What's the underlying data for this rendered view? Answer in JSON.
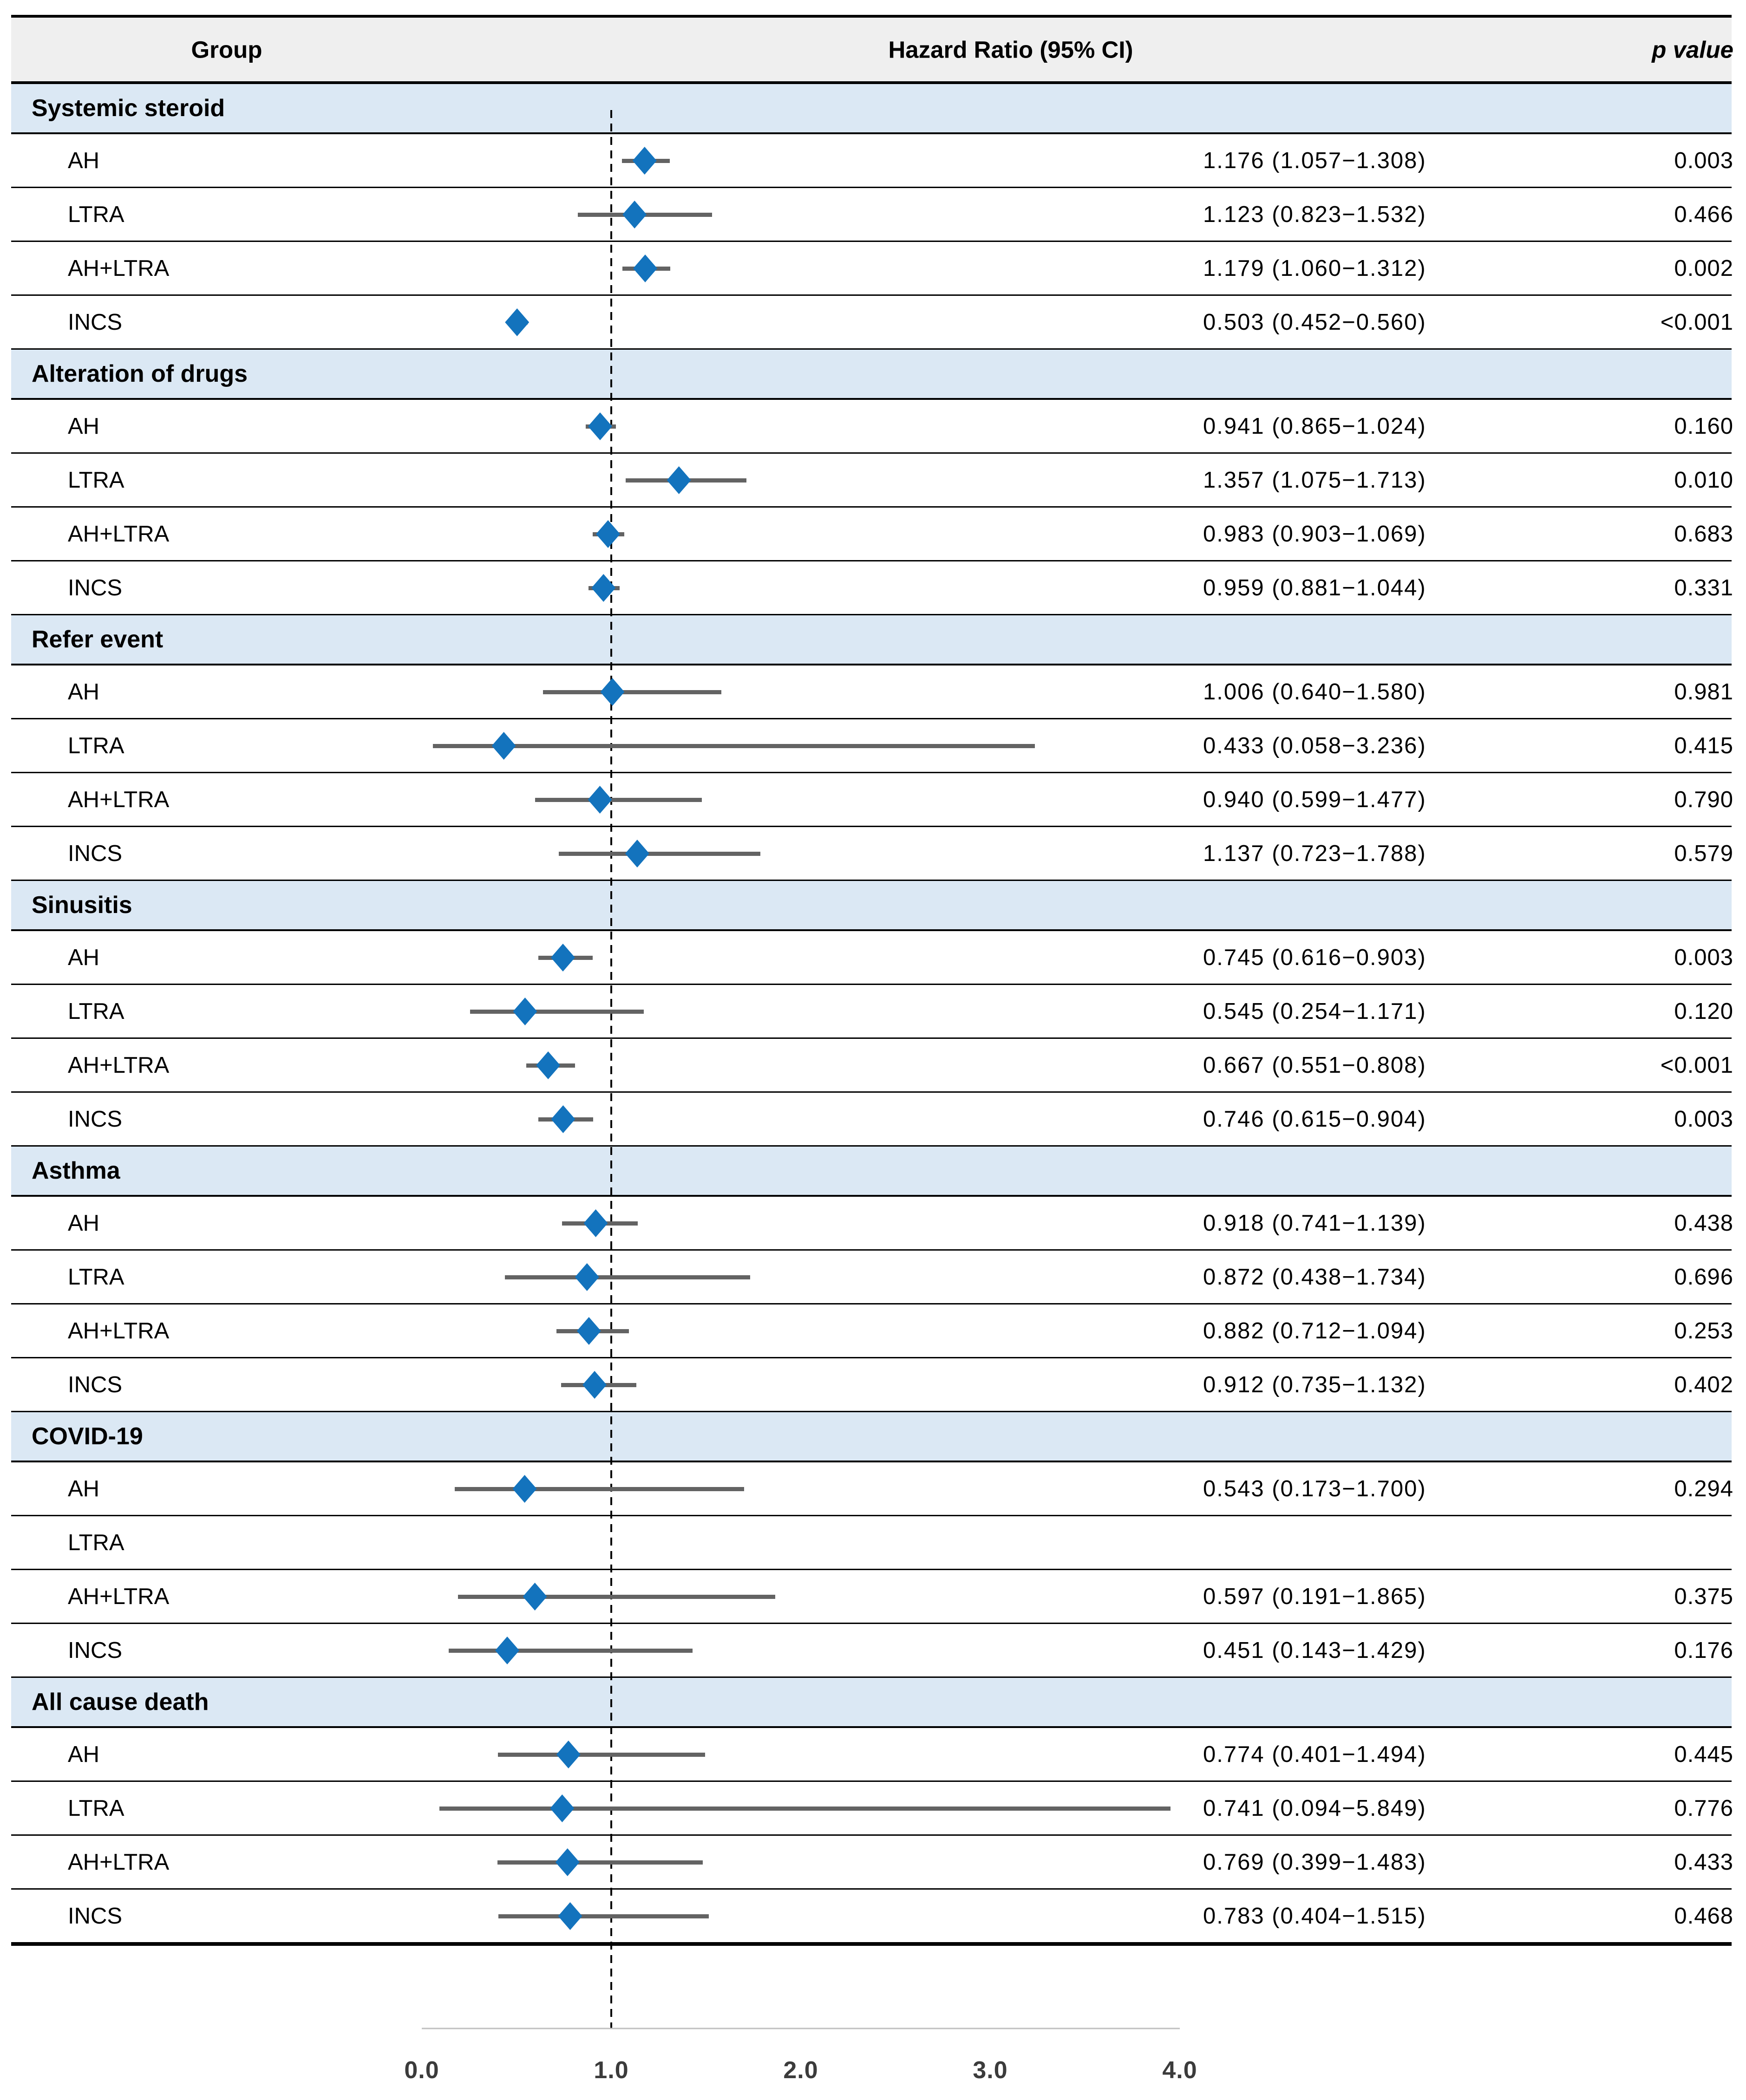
{
  "header": {
    "group": "Group",
    "hazard": "Hazard Ratio (95% CI)",
    "p": "p value"
  },
  "colors": {
    "diamond": "#1373bd",
    "ci_line": "#636363",
    "band_bg": "#dbe8f4",
    "header_bg": "#efefef",
    "border": "#000000",
    "axis_line": "#bfbfbf",
    "tick_text": "#3b3b3b",
    "reference_line": "#000000"
  },
  "chart_data": {
    "type": "scatter",
    "variant": "forest-plot",
    "title": "",
    "xlabel": "Hazard Ratio (95% CI)",
    "xlim": [
      0,
      4.05
    ],
    "x_ticks": [
      "0.0",
      "1.0",
      "2.0",
      "3.0",
      "4.0"
    ],
    "x_tick_values": [
      0,
      1,
      2,
      3,
      4
    ],
    "reference_line_x": 1.0,
    "grid": false,
    "legend_position": "none",
    "marker": "diamond",
    "sections": [
      {
        "label": "Systemic steroid",
        "rows": [
          {
            "label": "AH",
            "hr": 1.176,
            "lo": 1.057,
            "hi": 1.308,
            "hr_text": "1.176 (1.057−1.308)",
            "p": "0.003"
          },
          {
            "label": "LTRA",
            "hr": 1.123,
            "lo": 0.823,
            "hi": 1.532,
            "hr_text": "1.123 (0.823−1.532)",
            "p": "0.466"
          },
          {
            "label": "AH+LTRA",
            "hr": 1.179,
            "lo": 1.06,
            "hi": 1.312,
            "hr_text": "1.179 (1.060−1.312)",
            "p": "0.002"
          },
          {
            "label": "INCS",
            "hr": 0.503,
            "lo": 0.452,
            "hi": 0.56,
            "hr_text": "0.503 (0.452−0.560)",
            "p": "<0.001"
          }
        ]
      },
      {
        "label": "Alteration of drugs",
        "rows": [
          {
            "label": "AH",
            "hr": 0.941,
            "lo": 0.865,
            "hi": 1.024,
            "hr_text": "0.941 (0.865−1.024)",
            "p": "0.160"
          },
          {
            "label": "LTRA",
            "hr": 1.357,
            "lo": 1.075,
            "hi": 1.713,
            "hr_text": "1.357 (1.075−1.713)",
            "p": "0.010"
          },
          {
            "label": "AH+LTRA",
            "hr": 0.983,
            "lo": 0.903,
            "hi": 1.069,
            "hr_text": "0.983 (0.903−1.069)",
            "p": "0.683"
          },
          {
            "label": "INCS",
            "hr": 0.959,
            "lo": 0.881,
            "hi": 1.044,
            "hr_text": "0.959 (0.881−1.044)",
            "p": "0.331"
          }
        ]
      },
      {
        "label": "Refer event",
        "rows": [
          {
            "label": "AH",
            "hr": 1.006,
            "lo": 0.64,
            "hi": 1.58,
            "hr_text": "1.006 (0.640−1.580)",
            "p": "0.981"
          },
          {
            "label": "LTRA",
            "hr": 0.433,
            "lo": 0.058,
            "hi": 3.236,
            "hr_text": "0.433 (0.058−3.236)",
            "p": "0.415"
          },
          {
            "label": "AH+LTRA",
            "hr": 0.94,
            "lo": 0.599,
            "hi": 1.477,
            "hr_text": "0.940 (0.599−1.477)",
            "p": "0.790"
          },
          {
            "label": "INCS",
            "hr": 1.137,
            "lo": 0.723,
            "hi": 1.788,
            "hr_text": "1.137 (0.723−1.788)",
            "p": "0.579"
          }
        ]
      },
      {
        "label": "Sinusitis",
        "rows": [
          {
            "label": "AH",
            "hr": 0.745,
            "lo": 0.616,
            "hi": 0.903,
            "hr_text": "0.745 (0.616−0.903)",
            "p": "0.003"
          },
          {
            "label": "LTRA",
            "hr": 0.545,
            "lo": 0.254,
            "hi": 1.171,
            "hr_text": "0.545 (0.254−1.171)",
            "p": "0.120"
          },
          {
            "label": "AH+LTRA",
            "hr": 0.667,
            "lo": 0.551,
            "hi": 0.808,
            "hr_text": "0.667 (0.551−0.808)",
            "p": "<0.001"
          },
          {
            "label": "INCS",
            "hr": 0.746,
            "lo": 0.615,
            "hi": 0.904,
            "hr_text": "0.746 (0.615−0.904)",
            "p": "0.003"
          }
        ]
      },
      {
        "label": "Asthma",
        "rows": [
          {
            "label": "AH",
            "hr": 0.918,
            "lo": 0.741,
            "hi": 1.139,
            "hr_text": "0.918 (0.741−1.139)",
            "p": "0.438"
          },
          {
            "label": "LTRA",
            "hr": 0.872,
            "lo": 0.438,
            "hi": 1.734,
            "hr_text": "0.872 (0.438−1.734)",
            "p": "0.696"
          },
          {
            "label": "AH+LTRA",
            "hr": 0.882,
            "lo": 0.712,
            "hi": 1.094,
            "hr_text": "0.882 (0.712−1.094)",
            "p": "0.253"
          },
          {
            "label": "INCS",
            "hr": 0.912,
            "lo": 0.735,
            "hi": 1.132,
            "hr_text": "0.912 (0.735−1.132)",
            "p": "0.402"
          }
        ]
      },
      {
        "label": "COVID-19",
        "rows": [
          {
            "label": "AH",
            "hr": 0.543,
            "lo": 0.173,
            "hi": 1.7,
            "hr_text": "0.543 (0.173−1.700)",
            "p": "0.294"
          },
          {
            "label": "LTRA",
            "hr": null,
            "lo": null,
            "hi": null,
            "hr_text": "",
            "p": ""
          },
          {
            "label": "AH+LTRA",
            "hr": 0.597,
            "lo": 0.191,
            "hi": 1.865,
            "hr_text": "0.597 (0.191−1.865)",
            "p": "0.375"
          },
          {
            "label": "INCS",
            "hr": 0.451,
            "lo": 0.143,
            "hi": 1.429,
            "hr_text": "0.451 (0.143−1.429)",
            "p": "0.176"
          }
        ]
      },
      {
        "label": "All cause death",
        "rows": [
          {
            "label": "AH",
            "hr": 0.774,
            "lo": 0.401,
            "hi": 1.494,
            "hr_text": "0.774 (0.401−1.494)",
            "p": "0.445"
          },
          {
            "label": "LTRA",
            "hr": 0.741,
            "lo": 0.094,
            "hi": 5.849,
            "hr_text": "0.741 (0.094−5.849)",
            "p": "0.776"
          },
          {
            "label": "AH+LTRA",
            "hr": 0.769,
            "lo": 0.399,
            "hi": 1.483,
            "hr_text": "0.769 (0.399−1.483)",
            "p": "0.433"
          },
          {
            "label": "INCS",
            "hr": 0.783,
            "lo": 0.404,
            "hi": 1.515,
            "hr_text": "0.783 (0.404−1.515)",
            "p": "0.468"
          }
        ]
      }
    ]
  }
}
